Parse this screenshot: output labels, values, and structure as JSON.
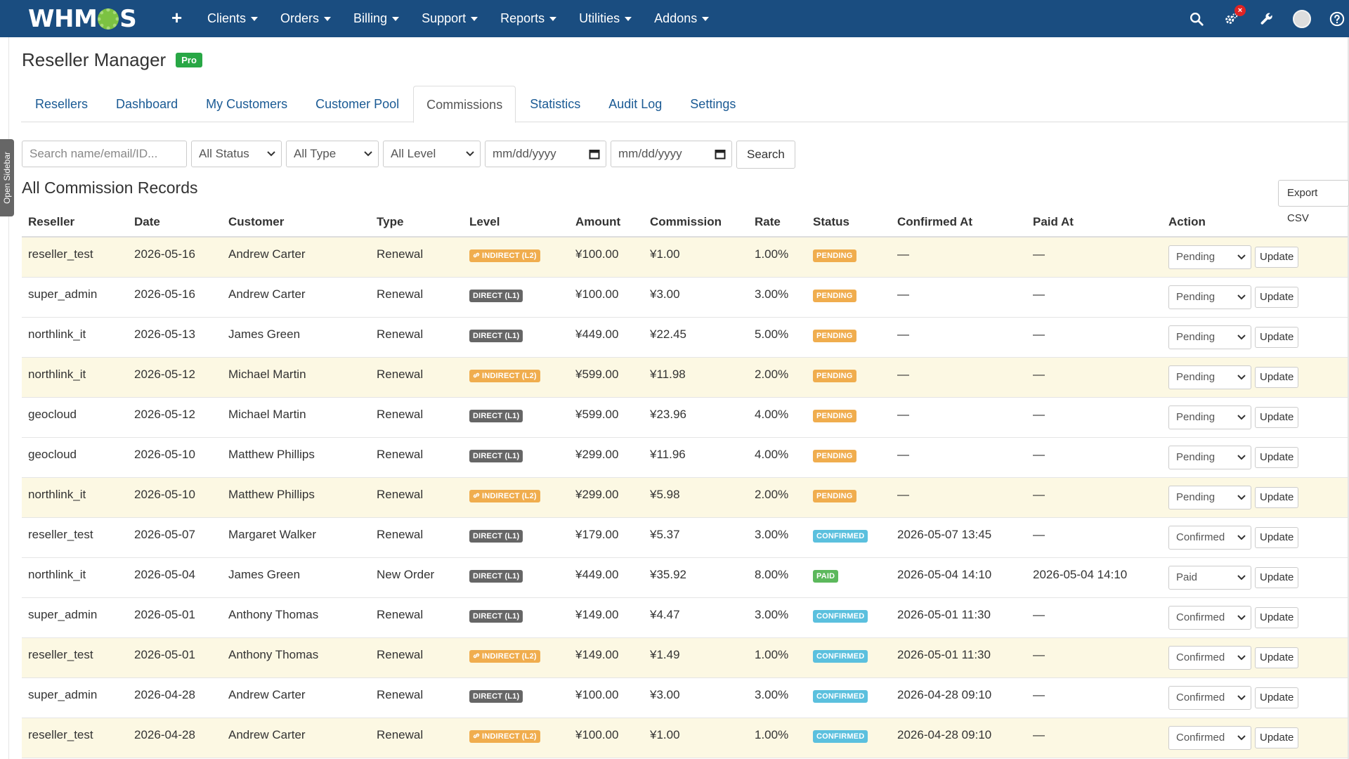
{
  "topbar": {
    "logo": "WHMCS",
    "nav": [
      "Clients",
      "Orders",
      "Billing",
      "Support",
      "Reports",
      "Utilities",
      "Addons"
    ],
    "notification_badge": "×"
  },
  "sidebar_handle": "Open Sidebar",
  "page": {
    "title": "Reseller Manager",
    "badge": "Pro",
    "badge_color": "#28a745"
  },
  "tabs": [
    "Resellers",
    "Dashboard",
    "My Customers",
    "Customer Pool",
    "Commissions",
    "Statistics",
    "Audit Log",
    "Settings"
  ],
  "active_tab": "Commissions",
  "filters": {
    "search_placeholder": "Search name/email/ID...",
    "status": "All Status",
    "type": "All Type",
    "level": "All Level",
    "date_from_placeholder": "mm/dd/yyyy",
    "date_to_placeholder": "mm/dd/yyyy",
    "search_button": "Search"
  },
  "section_title": "All Commission Records",
  "export_button": "Export CSV",
  "columns": [
    "Reseller",
    "Date",
    "Customer",
    "Type",
    "Level",
    "Amount",
    "Commission",
    "Rate",
    "Status",
    "Confirmed At",
    "Paid At",
    "Action"
  ],
  "update_label": "Update",
  "rows": [
    {
      "reseller": "reseller_test",
      "date": "2026-05-16",
      "customer": "Andrew Carter",
      "type": "Renewal",
      "level": "INDIRECT (L2)",
      "amount": "¥100.00",
      "commission": "¥1.00",
      "rate": "1.00%",
      "status": "PENDING",
      "confirmed_at": "—",
      "paid_at": "—",
      "action": "Pending"
    },
    {
      "reseller": "super_admin",
      "date": "2026-05-16",
      "customer": "Andrew Carter",
      "type": "Renewal",
      "level": "DIRECT (L1)",
      "amount": "¥100.00",
      "commission": "¥3.00",
      "rate": "3.00%",
      "status": "PENDING",
      "confirmed_at": "—",
      "paid_at": "—",
      "action": "Pending"
    },
    {
      "reseller": "northlink_it",
      "date": "2026-05-13",
      "customer": "James Green",
      "type": "Renewal",
      "level": "DIRECT (L1)",
      "amount": "¥449.00",
      "commission": "¥22.45",
      "rate": "5.00%",
      "status": "PENDING",
      "confirmed_at": "—",
      "paid_at": "—",
      "action": "Pending"
    },
    {
      "reseller": "northlink_it",
      "date": "2026-05-12",
      "customer": "Michael Martin",
      "type": "Renewal",
      "level": "INDIRECT (L2)",
      "amount": "¥599.00",
      "commission": "¥11.98",
      "rate": "2.00%",
      "status": "PENDING",
      "confirmed_at": "—",
      "paid_at": "—",
      "action": "Pending"
    },
    {
      "reseller": "geocloud",
      "date": "2026-05-12",
      "customer": "Michael Martin",
      "type": "Renewal",
      "level": "DIRECT (L1)",
      "amount": "¥599.00",
      "commission": "¥23.96",
      "rate": "4.00%",
      "status": "PENDING",
      "confirmed_at": "—",
      "paid_at": "—",
      "action": "Pending"
    },
    {
      "reseller": "geocloud",
      "date": "2026-05-10",
      "customer": "Matthew Phillips",
      "type": "Renewal",
      "level": "DIRECT (L1)",
      "amount": "¥299.00",
      "commission": "¥11.96",
      "rate": "4.00%",
      "status": "PENDING",
      "confirmed_at": "—",
      "paid_at": "—",
      "action": "Pending"
    },
    {
      "reseller": "northlink_it",
      "date": "2026-05-10",
      "customer": "Matthew Phillips",
      "type": "Renewal",
      "level": "INDIRECT (L2)",
      "amount": "¥299.00",
      "commission": "¥5.98",
      "rate": "2.00%",
      "status": "PENDING",
      "confirmed_at": "—",
      "paid_at": "—",
      "action": "Pending"
    },
    {
      "reseller": "reseller_test",
      "date": "2026-05-07",
      "customer": "Margaret Walker",
      "type": "Renewal",
      "level": "DIRECT (L1)",
      "amount": "¥179.00",
      "commission": "¥5.37",
      "rate": "3.00%",
      "status": "CONFIRMED",
      "confirmed_at": "2026-05-07 13:45",
      "paid_at": "—",
      "action": "Confirmed"
    },
    {
      "reseller": "northlink_it",
      "date": "2026-05-04",
      "customer": "James Green",
      "type": "New Order",
      "level": "DIRECT (L1)",
      "amount": "¥449.00",
      "commission": "¥35.92",
      "rate": "8.00%",
      "status": "PAID",
      "confirmed_at": "2026-05-04 14:10",
      "paid_at": "2026-05-04 14:10",
      "action": "Paid"
    },
    {
      "reseller": "super_admin",
      "date": "2026-05-01",
      "customer": "Anthony Thomas",
      "type": "Renewal",
      "level": "DIRECT (L1)",
      "amount": "¥149.00",
      "commission": "¥4.47",
      "rate": "3.00%",
      "status": "CONFIRMED",
      "confirmed_at": "2026-05-01 11:30",
      "paid_at": "—",
      "action": "Confirmed"
    },
    {
      "reseller": "reseller_test",
      "date": "2026-05-01",
      "customer": "Anthony Thomas",
      "type": "Renewal",
      "level": "INDIRECT (L2)",
      "amount": "¥149.00",
      "commission": "¥1.49",
      "rate": "1.00%",
      "status": "CONFIRMED",
      "confirmed_at": "2026-05-01 11:30",
      "paid_at": "—",
      "action": "Confirmed"
    },
    {
      "reseller": "super_admin",
      "date": "2026-04-28",
      "customer": "Andrew Carter",
      "type": "Renewal",
      "level": "DIRECT (L1)",
      "amount": "¥100.00",
      "commission": "¥3.00",
      "rate": "3.00%",
      "status": "CONFIRMED",
      "confirmed_at": "2026-04-28 09:10",
      "paid_at": "—",
      "action": "Confirmed"
    },
    {
      "reseller": "reseller_test",
      "date": "2026-04-28",
      "customer": "Andrew Carter",
      "type": "Renewal",
      "level": "INDIRECT (L2)",
      "amount": "¥100.00",
      "commission": "¥1.00",
      "rate": "1.00%",
      "status": "CONFIRMED",
      "confirmed_at": "2026-04-28 09:10",
      "paid_at": "—",
      "action": "Confirmed"
    }
  ],
  "colors": {
    "navbar": "#1a4d80",
    "highlight_row": "#fcf8e3",
    "pending": "#f0ad4e",
    "confirmed": "#5bc0de",
    "paid": "#5cb85c",
    "direct": "#666666",
    "indirect": "#f0ad4e"
  },
  "icons": [
    "plus-icon",
    "search-icon",
    "gears-icon",
    "wrench-icon",
    "avatar",
    "help-icon",
    "link-icon",
    "calendar-icon",
    "chevron-down-icon"
  ]
}
